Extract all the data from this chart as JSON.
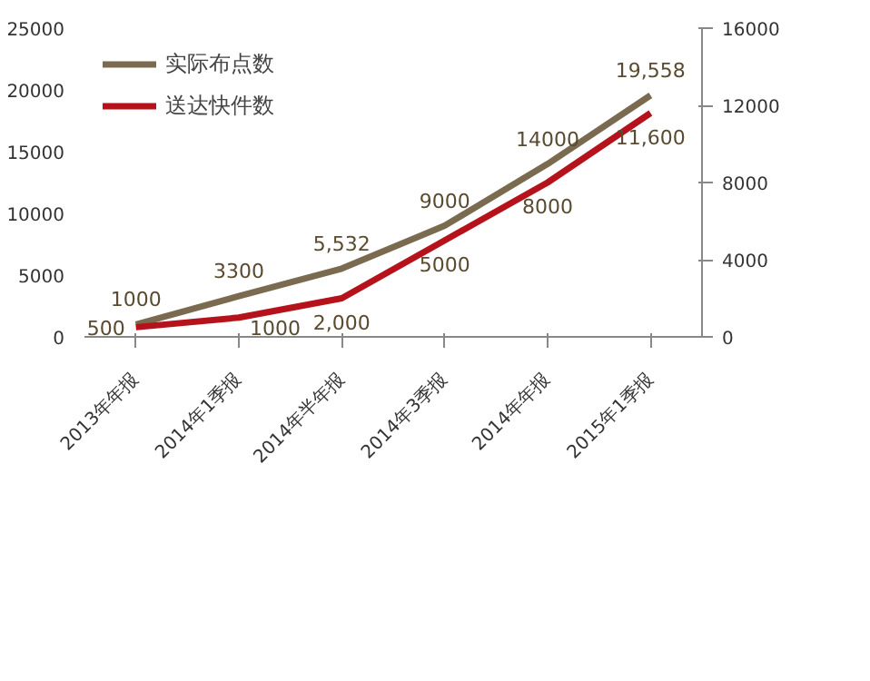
{
  "chart_data": {
    "type": "line",
    "categories": [
      "2013年年报",
      "2014年1季报",
      "2014年半年报",
      "2014年3季报",
      "2014年年报",
      "2015年1季报"
    ],
    "series": [
      {
        "name": "实际布点数",
        "color": "#7a6a4f",
        "values": [
          1000,
          3300,
          5532,
          9000,
          14000,
          19558
        ],
        "value_labels": [
          "1000",
          "3300",
          "5,532",
          "9000",
          "14000",
          "19,558"
        ]
      },
      {
        "name": "送达快件数",
        "color": "#b5121b",
        "axis": "y2",
        "values": [
          500,
          1000,
          2000,
          5000,
          8000,
          11600
        ],
        "value_labels": [
          "500",
          "1000",
          "2,000",
          "5000",
          "8000",
          "11,600"
        ]
      }
    ],
    "ylim": [
      0,
      25000
    ],
    "yticks": [
      0,
      5000,
      10000,
      15000,
      20000,
      25000
    ],
    "y2lim": [
      0,
      16000
    ],
    "y2ticks": [
      0,
      4000,
      8000,
      12000,
      16000
    ],
    "grid": false,
    "legend": "top left",
    "marker": "none",
    "line_style": "solid"
  }
}
